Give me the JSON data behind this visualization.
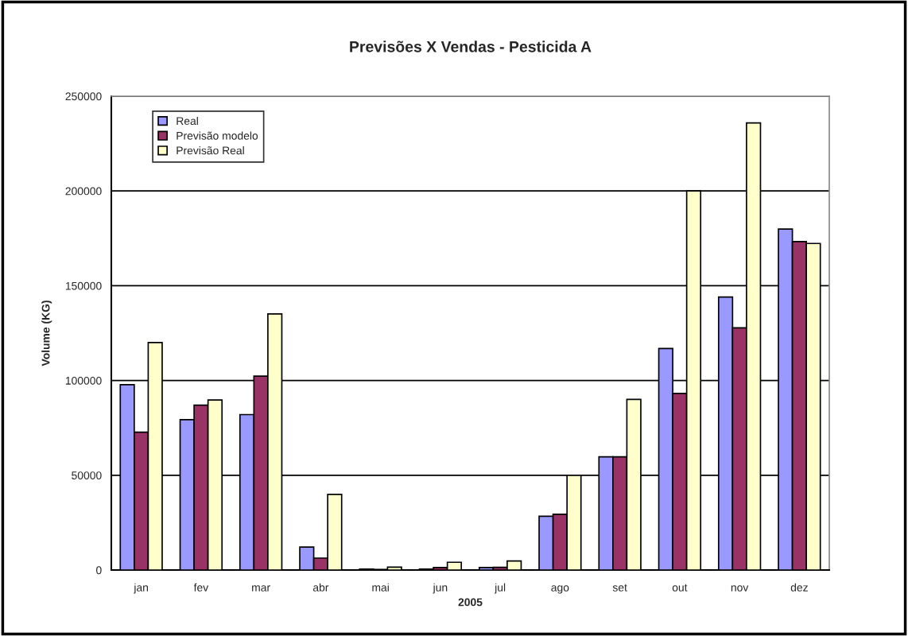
{
  "chart_data": {
    "type": "bar",
    "title": "Previsões X Vendas - Pesticida A",
    "xlabel": "2005",
    "ylabel": "Volume (KG)",
    "categories": [
      "jan",
      "fev",
      "mar",
      "abr",
      "mai",
      "jun",
      "jul",
      "ago",
      "set",
      "out",
      "nov",
      "dez"
    ],
    "series": [
      {
        "name": "Real",
        "color": "#9999ff",
        "values": [
          97800,
          79300,
          82000,
          12100,
          500,
          500,
          1300,
          28400,
          59700,
          116900,
          144000,
          179900
        ]
      },
      {
        "name": "Previsão modelo",
        "color": "#993366",
        "values": [
          72700,
          87000,
          102300,
          6300,
          300,
          1300,
          1400,
          29400,
          59700,
          93200,
          127800,
          173300
        ]
      },
      {
        "name": "Previsão Real",
        "color": "#ffffcc",
        "values": [
          120000,
          89700,
          135100,
          39900,
          1500,
          4100,
          4800,
          50000,
          90000,
          200000,
          235900,
          172300
        ]
      }
    ],
    "ylim": [
      0,
      250000
    ],
    "yticks": [
      0,
      50000,
      100000,
      150000,
      200000,
      250000
    ],
    "grid": "y",
    "legend": "top left"
  }
}
